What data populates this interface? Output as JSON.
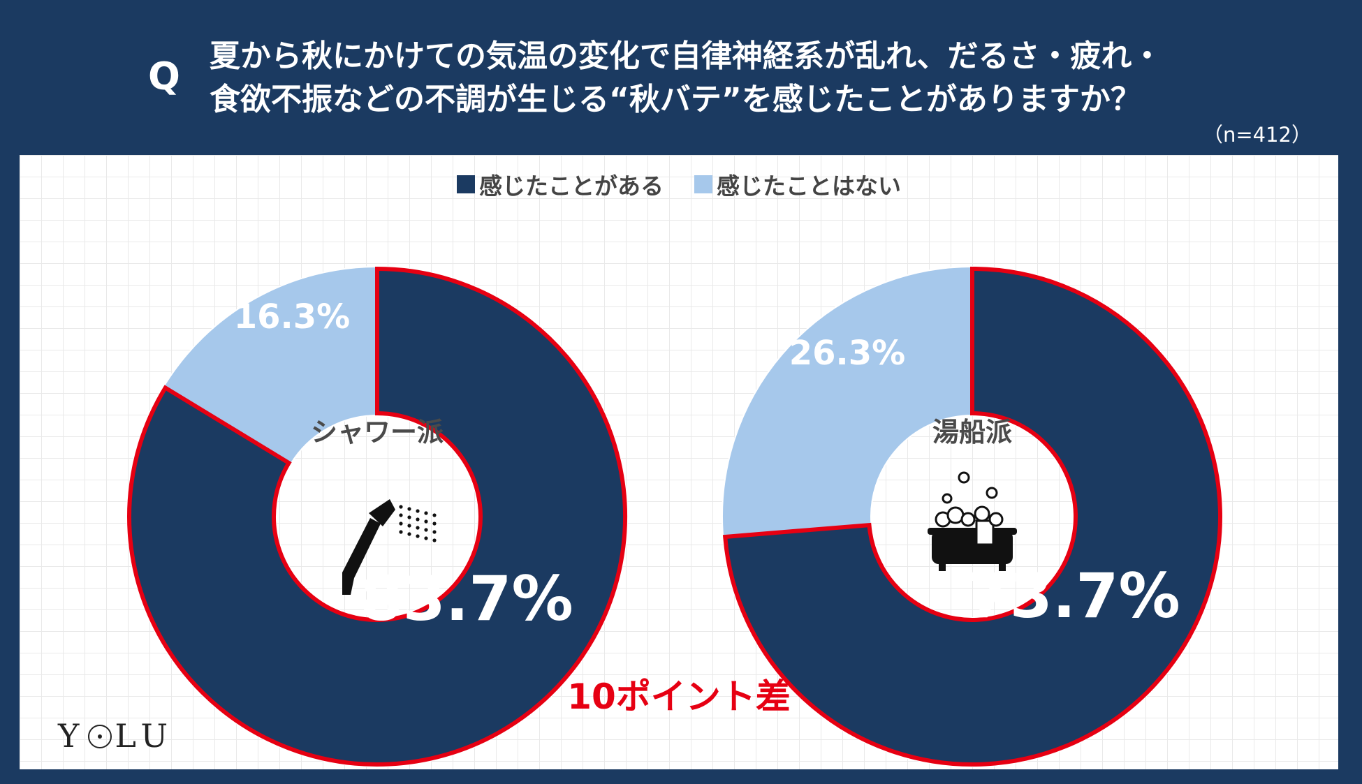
{
  "question": {
    "mark": "Q",
    "line1": "夏から秋にかけての気温の変化で自律神経系が乱れ、だるさ・疲れ・",
    "line2": "食欲不振などの不調が生じる“秋バテ”を感じたことがありますか？"
  },
  "sample": "（n=412）",
  "colors": {
    "background": "#1b3a61",
    "felt": "#1b3a61",
    "not_felt": "#a6c8eb",
    "highlight": "#e60012"
  },
  "legend": [
    {
      "label": "感じたことがある",
      "color": "#1b3a61"
    },
    {
      "label": "感じたことはない",
      "color": "#a6c8eb"
    }
  ],
  "chart_data": [
    {
      "type": "pie",
      "center_label": "シャワー派",
      "center_icon": "shower-icon",
      "categories": [
        "感じたことがある",
        "感じたことはない"
      ],
      "values": [
        83.7,
        16.3
      ],
      "value_labels": [
        "83.7%",
        "16.3%"
      ],
      "colors": [
        "#1b3a61",
        "#a6c8eb"
      ]
    },
    {
      "type": "pie",
      "center_label": "湯船派",
      "center_icon": "bathtub-icon",
      "categories": [
        "感じたことがある",
        "感じたことはない"
      ],
      "values": [
        73.7,
        26.3
      ],
      "value_labels": [
        "73.7%",
        "26.3%"
      ],
      "colors": [
        "#1b3a61",
        "#a6c8eb"
      ]
    }
  ],
  "annotation": "10ポイント差",
  "logo": "YOLU"
}
